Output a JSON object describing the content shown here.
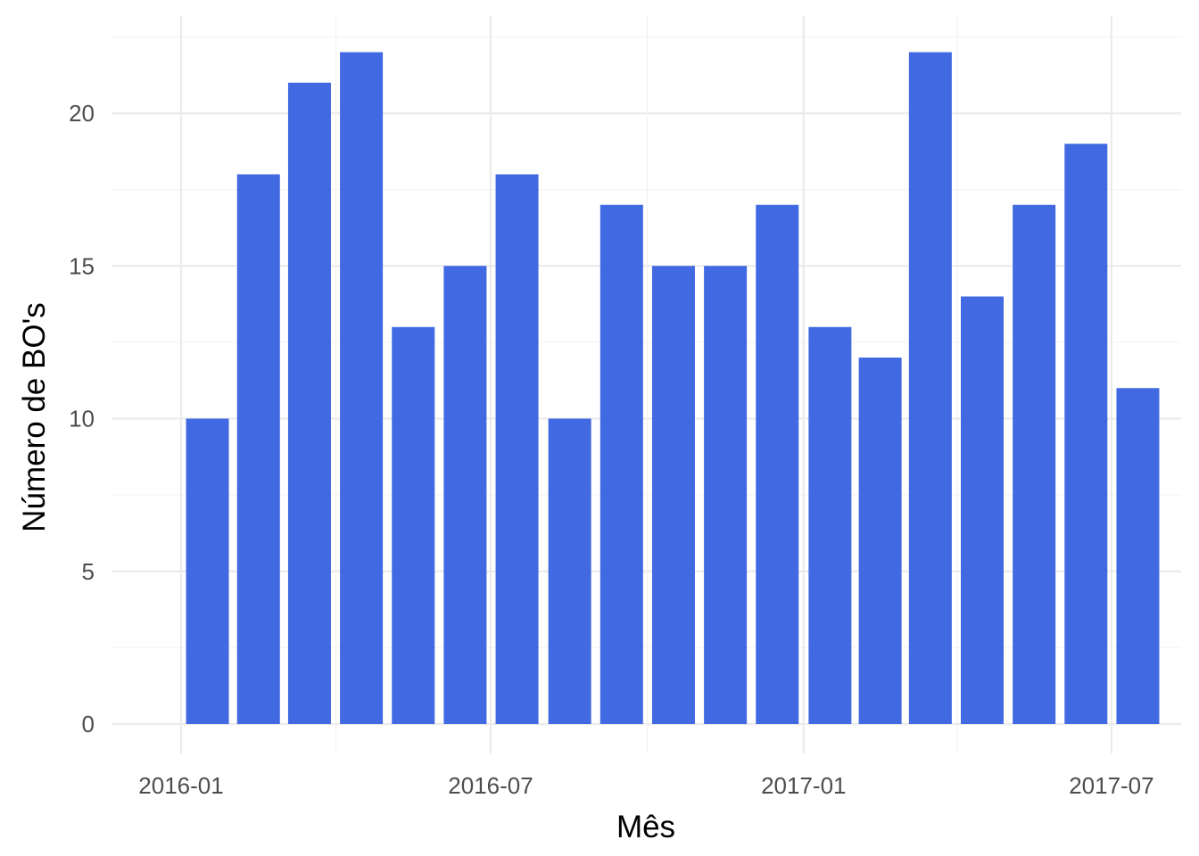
{
  "chart_data": {
    "type": "bar",
    "xlabel": "Mês",
    "ylabel": "Número de BO's",
    "x_axis_type": "date-month",
    "categories": [
      "2016-01",
      "2016-02",
      "2016-03",
      "2016-04",
      "2016-05",
      "2016-06",
      "2016-07",
      "2016-08",
      "2016-09",
      "2016-10",
      "2016-11",
      "2016-12",
      "2017-01",
      "2017-02",
      "2017-03",
      "2017-04",
      "2017-05",
      "2017-06",
      "2017-07"
    ],
    "values": [
      10,
      18,
      21,
      22,
      13,
      15,
      18,
      10,
      17,
      15,
      15,
      17,
      13,
      12,
      22,
      14,
      17,
      19,
      11
    ],
    "x_ticks": [
      "2016-01",
      "2016-07",
      "2017-01",
      "2017-07"
    ],
    "y_ticks": [
      0,
      5,
      10,
      15,
      20
    ],
    "ylim": [
      0,
      23
    ],
    "xlim": [
      "2015-12",
      "2017-08"
    ],
    "bar_color": "#4169E1",
    "grid": true,
    "legend": "none"
  }
}
